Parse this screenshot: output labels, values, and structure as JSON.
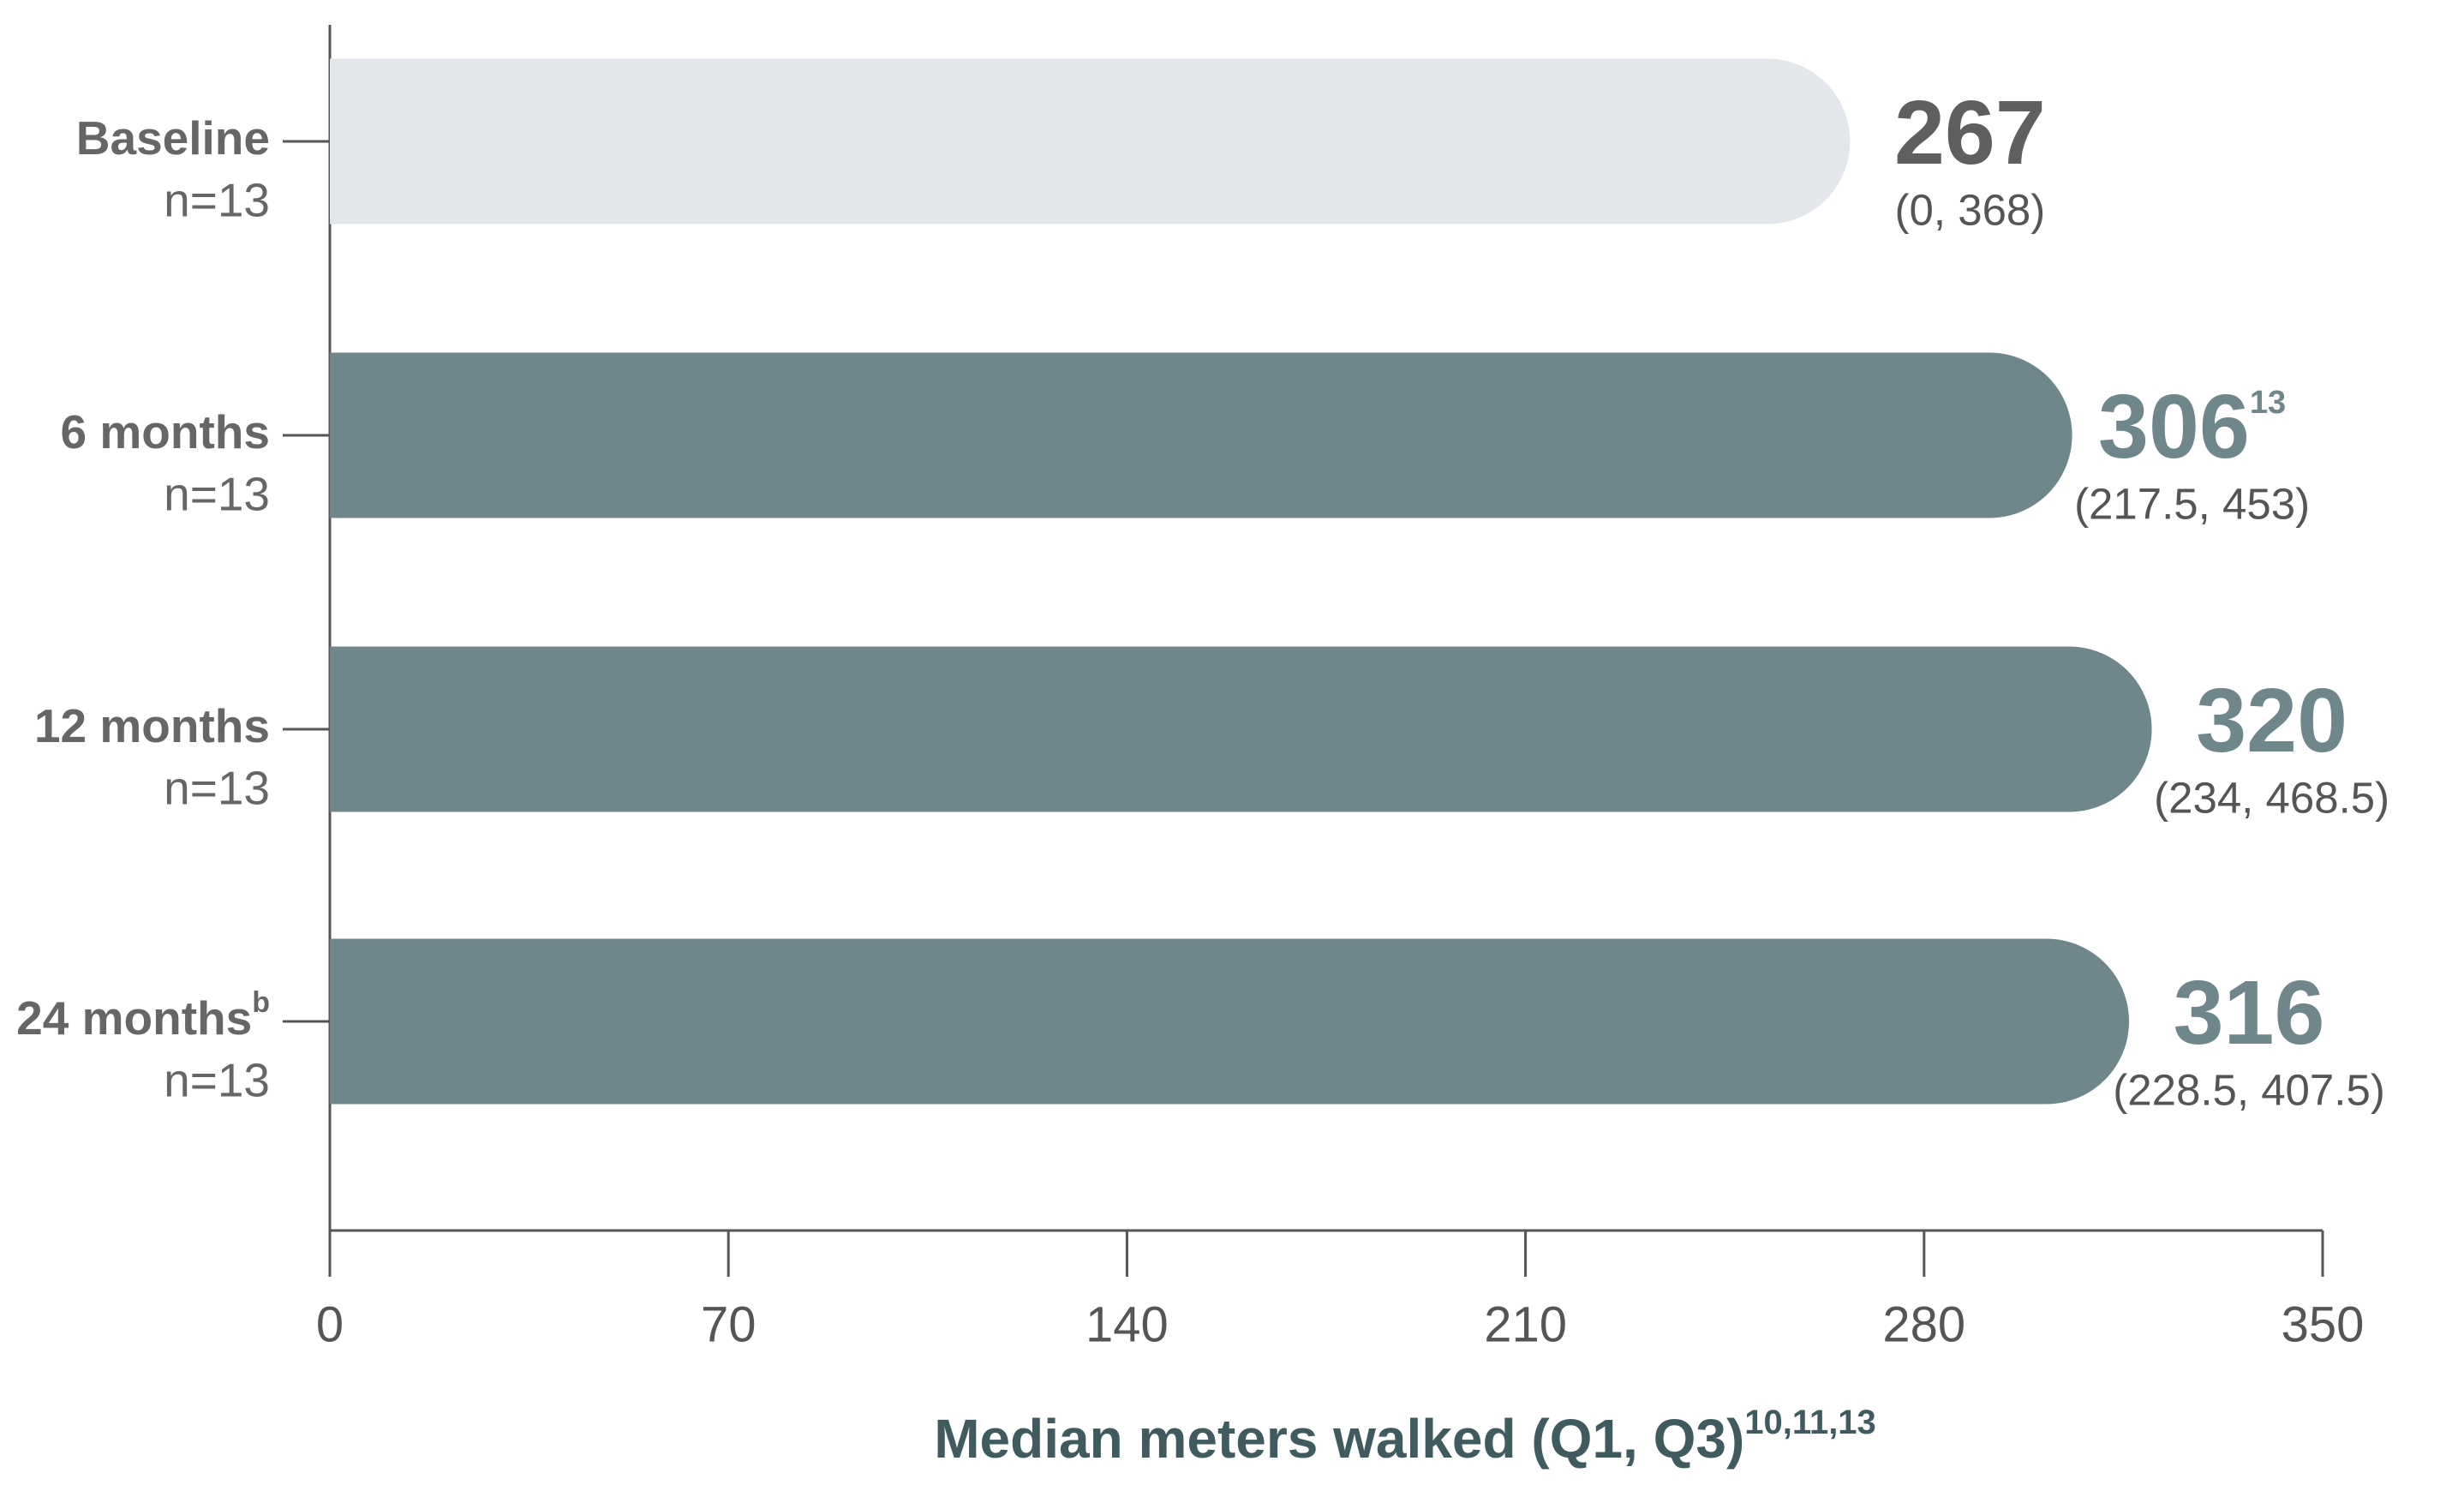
{
  "chart_data": {
    "type": "bar",
    "orientation": "horizontal",
    "categories": [
      "Baseline",
      "6 months",
      "12 months",
      "24 months"
    ],
    "category_superscripts": [
      null,
      null,
      null,
      "b"
    ],
    "category_notes": [
      "n=13",
      "n=13",
      "n=13",
      "n=13"
    ],
    "series": [
      {
        "values": [
          267,
          306,
          320,
          316
        ],
        "colors": [
          "#e3e6ea",
          "#6e868c",
          "#6e868c",
          "#6e868c"
        ],
        "label_colors": [
          "#5f5f5f",
          "#6e868c",
          "#6e868c",
          "#6e868c"
        ],
        "value_superscripts": [
          null,
          "13",
          null,
          null
        ],
        "interval_labels": [
          "(0, 368)",
          "(217.5, 453)",
          "(234, 468.5)",
          "(228.5, 407.5)"
        ]
      }
    ],
    "x_label": "Median meters walked (Q1, Q3)",
    "x_label_superscript": "10,11,13",
    "xlim": [
      0,
      350
    ],
    "xticks": [
      0,
      70,
      140,
      210,
      280,
      350
    ],
    "grid": false
  }
}
